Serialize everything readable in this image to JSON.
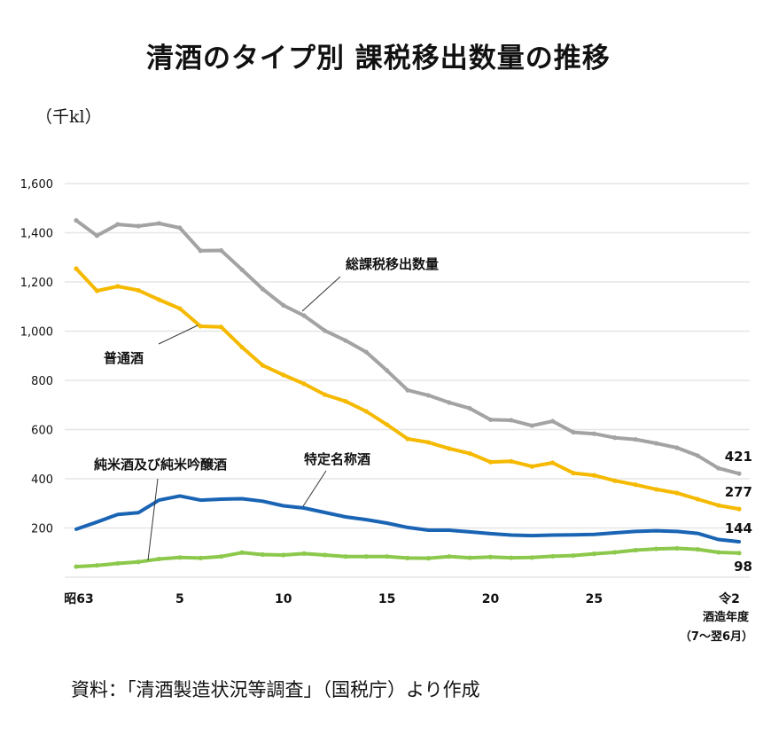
{
  "header": {
    "title": "清酒のタイプ別  課税移出数量の推移",
    "unit": "（千kl）"
  },
  "footer": {
    "source": "資料：「清酒製造状況等調査」（国税庁）より作成"
  },
  "colors": {
    "total": "#a3a3a3",
    "futsu": "#f5b900",
    "tokutei": "#1a64b4",
    "junmai": "#8cc84b"
  },
  "chart_data": {
    "type": "line",
    "title": "清酒のタイプ別  課税移出数量の推移",
    "ylabel": "（千kl）",
    "xlabel": "酒造年度（7～翌6月）",
    "ylim": [
      0,
      1600
    ],
    "yticks": [
      200,
      400,
      600,
      800,
      1000,
      1200,
      1400,
      1600
    ],
    "ytick_labels": [
      "200",
      "400",
      "600",
      "800",
      "1,000",
      "1,200",
      "1,400",
      "1,600"
    ],
    "grid": true,
    "x": [
      "昭63",
      "1",
      "2",
      "3",
      "4",
      "5",
      "6",
      "7",
      "8",
      "9",
      "10",
      "11",
      "12",
      "13",
      "14",
      "15",
      "16",
      "17",
      "18",
      "19",
      "20",
      "21",
      "22",
      "23",
      "24",
      "25",
      "26",
      "27",
      "28",
      "29",
      "30",
      "令1",
      "令2"
    ],
    "xtick_labels": [
      {
        "index": 0,
        "label": "昭63"
      },
      {
        "index": 5,
        "label": "5"
      },
      {
        "index": 10,
        "label": "10"
      },
      {
        "index": 15,
        "label": "15"
      },
      {
        "index": 20,
        "label": "20"
      },
      {
        "index": 25,
        "label": "25"
      },
      {
        "index": 32,
        "label": "令2"
      }
    ],
    "x_note_lines": [
      "酒造年度",
      "（7～翌6月）"
    ],
    "series": [
      {
        "key": "total",
        "name": "総課税移出数量",
        "values": [
          1450,
          1388,
          1434,
          1427,
          1438,
          1420,
          1327,
          1328,
          1250,
          1171,
          1105,
          1063,
          1002,
          962,
          915,
          840,
          760,
          739,
          710,
          686,
          640,
          638,
          616,
          634,
          589,
          583,
          567,
          560,
          544,
          526,
          494,
          443,
          421
        ],
        "end_label": "421"
      },
      {
        "key": "futsu",
        "name": "普通酒",
        "values": [
          1254,
          1164,
          1182,
          1166,
          1128,
          1092,
          1020,
          1017,
          935,
          861,
          822,
          786,
          742,
          715,
          674,
          620,
          562,
          548,
          523,
          503,
          468,
          471,
          450,
          465,
          423,
          414,
          392,
          376,
          357,
          342,
          317,
          292,
          277
        ],
        "end_label": "277"
      },
      {
        "key": "tokutei",
        "name": "特定名称酒",
        "values": [
          195,
          224,
          255,
          262,
          313,
          330,
          313,
          317,
          319,
          309,
          290,
          281,
          263,
          245,
          234,
          220,
          202,
          191,
          191,
          184,
          177,
          171,
          169,
          171,
          172,
          174,
          180,
          186,
          189,
          186,
          178,
          153,
          144
        ],
        "end_label": "144"
      },
      {
        "key": "junmai",
        "name": "純米酒及び純米吟醸酒",
        "values": [
          43,
          48,
          56,
          62,
          74,
          80,
          78,
          84,
          100,
          92,
          90,
          96,
          90,
          84,
          84,
          84,
          78,
          77,
          84,
          79,
          82,
          79,
          80,
          85,
          88,
          95,
          101,
          110,
          115,
          117,
          113,
          101,
          98
        ],
        "end_label": "98"
      }
    ],
    "annotations": [
      {
        "series": "total",
        "text": "総課税移出数量",
        "point_index": 11
      },
      {
        "series": "futsu",
        "text": "普通酒",
        "point_index": 6
      },
      {
        "series": "tokutei",
        "text": "特定名称酒",
        "point_index": 11
      },
      {
        "series": "junmai",
        "text": "純米酒及び純米吟醸酒",
        "point_index": 3.5
      }
    ]
  }
}
